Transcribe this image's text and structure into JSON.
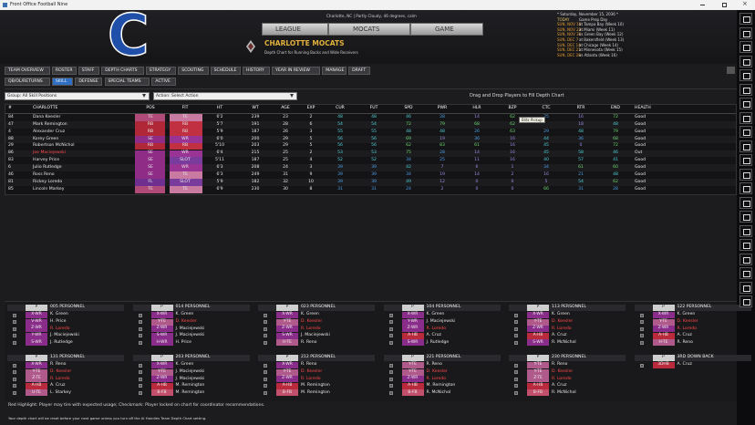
{
  "window": {
    "title": "Front Office Football Nine"
  },
  "header": {
    "location": "Charlotte, NC | Partly Cloudy, 46 degrees, calm",
    "logo": "C",
    "nav": [
      "LEAGUE",
      "MOCATS",
      "GAME"
    ],
    "team": "CHARLOTTE MOCATS",
    "subtitle": "Depth Chart for Running Backs and Wide Receivers"
  },
  "schedule": {
    "date": "* Saturday, November 15, 2036 *",
    "rows": [
      [
        "TODAY",
        "Game Prep Day"
      ],
      [
        "SUN, NOV 16",
        "at Tampa Bay (Week 10)"
      ],
      [
        "SUN, NOV 23",
        "at Miami (Week 11)"
      ],
      [
        "SUN, NOV 30",
        "vs Green Bay (Week 12)"
      ],
      [
        "SUN, DEC 7",
        "at Bakersfield (Week 13)"
      ],
      [
        "SUN, DEC 14",
        "at Chicago (Week 14)"
      ],
      [
        "SUN, DEC 21",
        "at Minnesota (Week 15)"
      ],
      [
        "SUN, DEC 28",
        "vs Atlanta (Week 16)"
      ]
    ]
  },
  "tabs": [
    "TEAM OVERVIEW",
    "ROSTER",
    "STAFF",
    "DEPTH CHARTS",
    "STRATEGY",
    "SCOUTING",
    "SCHEDULE",
    "HISTORY",
    "YEAR IN REVIEW",
    "MANAGE",
    "DRAFT"
  ],
  "subtabs": [
    "QB/OL/RETURNS",
    "SKILL",
    "DEFENSE",
    "SPECIAL TEAMS",
    "ACTIVE"
  ],
  "active_subtab": 1,
  "controls": {
    "group": "Group: All Skill Positions",
    "action": "Action: Select Action",
    "hint": "Drag and Drop Players to Fill Depth Chart"
  },
  "table": {
    "columns": [
      "#",
      "CHARLOTTE",
      "POS",
      "FIT",
      "HT",
      "WT",
      "AGE",
      "EXP",
      "CUR",
      "FUT",
      "SPD",
      "PWR",
      "HLR",
      "BZP",
      "CTC",
      "RTR",
      "END",
      "HEALTH"
    ],
    "rows": [
      [
        84,
        "Dana Keesler",
        "TE",
        "TE",
        "6'2",
        239,
        23,
        2,
        48,
        48,
        46,
        28,
        14,
        62,
        25,
        16,
        72,
        "Good"
      ],
      [
        47,
        "Mark Remington",
        "RB",
        "RB",
        "5'7",
        191,
        28,
        6,
        54,
        54,
        72,
        79,
        68,
        62,
        null,
        18,
        48,
        "Good"
      ],
      [
        4,
        "Alexander Cruz",
        "RB",
        "RB",
        "5'9",
        187,
        26,
        3,
        55,
        55,
        48,
        48,
        26,
        63,
        29,
        48,
        79,
        "Good"
      ],
      [
        88,
        "Korey Green",
        "SE",
        "WR",
        "6'0",
        200,
        29,
        5,
        56,
        56,
        69,
        19,
        36,
        16,
        44,
        36,
        68,
        "Good"
      ],
      [
        29,
        "Robertson McNichol",
        "RB",
        "RB",
        "5'10",
        203,
        29,
        5,
        56,
        56,
        62,
        83,
        61,
        16,
        45,
        0,
        72,
        "Good"
      ],
      [
        86,
        "Joe Maciejewski",
        "SE",
        "WR",
        "6'4",
        215,
        25,
        2,
        53,
        53,
        75,
        28,
        14,
        16,
        45,
        58,
        46,
        "Out"
      ],
      [
        83,
        "Harvey Price",
        "SE",
        "SLOT",
        "5'11",
        187,
        25,
        4,
        52,
        52,
        34,
        25,
        11,
        16,
        40,
        57,
        41,
        "Good"
      ],
      [
        6,
        "Julio Rutledge",
        "SE",
        "WR",
        "6'3",
        208,
        24,
        3,
        39,
        39,
        42,
        7,
        6,
        1,
        34,
        61,
        60,
        "Good"
      ],
      [
        46,
        "Ross Reno",
        "SE",
        "TE",
        "6'3",
        249,
        31,
        9,
        39,
        39,
        34,
        19,
        14,
        2,
        16,
        21,
        48,
        "Good"
      ],
      [
        81,
        "Rickey Loredo",
        "FL",
        "SLOT",
        "5'9",
        182,
        32,
        10,
        39,
        39,
        49,
        12,
        0,
        0,
        5,
        54,
        62,
        "Good"
      ],
      [
        85,
        "Lincoln Markey",
        "TE",
        "TE",
        "6'9",
        230,
        30,
        8,
        31,
        31,
        24,
        2,
        0,
        0,
        66,
        31,
        28,
        "Good"
      ]
    ],
    "red_rows": [
      5
    ],
    "tooltip": "Blitz Pickup"
  },
  "personnel": [
    {
      "p": "P",
      "title": "005 PERSONNEL",
      "slots": [
        {
          "pos": "X-WR",
          "player": "K. Green"
        },
        {
          "pos": "V-WR",
          "player": "H. Price"
        },
        {
          "pos": "Z-WR",
          "player": "R. Loredo",
          "red": true
        },
        {
          "pos": "Y-WR",
          "player": "J. Maciejewski"
        },
        {
          "pos": "S-WR",
          "player": "J. Rutledge"
        }
      ]
    },
    {
      "p": "P",
      "title": "014 PERSONNEL",
      "slots": [
        {
          "pos": "X-WR",
          "player": "K. Green"
        },
        {
          "pos": "Y-TE",
          "player": "D. Keesler",
          "red": true
        },
        {
          "pos": "Z-WR",
          "player": "J. Maciejewski"
        },
        {
          "pos": "S-WR",
          "player": "J. Maciejewski"
        },
        {
          "pos": "H-WR",
          "player": "H. Price"
        }
      ]
    },
    {
      "p": "P",
      "title": "023 PERSONNEL",
      "slots": [
        {
          "pos": "X-WR",
          "player": "K. Green"
        },
        {
          "pos": "Y-TE",
          "player": "D. Keesler",
          "red": true
        },
        {
          "pos": "Z-WR",
          "player": "R. Loredo",
          "red": true
        },
        {
          "pos": "S-WR",
          "player": "J. Maciejewski"
        },
        {
          "pos": "H-TE",
          "player": "R. Reno"
        }
      ]
    },
    {
      "p": "P",
      "title": "104 PERSONNEL",
      "slots": [
        {
          "pos": "X-WR",
          "player": "K. Green"
        },
        {
          "pos": "Y-WR",
          "player": "J. Maciejewski"
        },
        {
          "pos": "Z-WR",
          "player": "R. Loredo",
          "red": true
        },
        {
          "pos": "A-HB",
          "player": "A. Cruz"
        },
        {
          "pos": "S-WR",
          "player": "J. Rutledge"
        }
      ]
    },
    {
      "p": "P",
      "title": "113 PERSONNEL",
      "slots": [
        {
          "pos": "X-WR",
          "player": "K. Green"
        },
        {
          "pos": "Y-TE",
          "player": "D. Keesler",
          "red": true
        },
        {
          "pos": "Z-WR",
          "player": "R. Loredo",
          "red": true
        },
        {
          "pos": "A-HB",
          "player": "A. Cruz"
        },
        {
          "pos": "S-WR",
          "player": "R. McNichol"
        }
      ]
    },
    {
      "p": "P",
      "title": "122 PERSONNEL",
      "slots": [
        {
          "pos": "X-WR",
          "player": "K. Green"
        },
        {
          "pos": "Y-TE",
          "player": "D. Keesler",
          "red": true
        },
        {
          "pos": "Z-WR",
          "player": "R. Loredo",
          "red": true
        },
        {
          "pos": "A-HB",
          "player": "A. Cruz"
        },
        {
          "pos": "H-TE",
          "player": "R. Reno"
        }
      ]
    },
    {
      "p": "P",
      "title": "131 PERSONNEL",
      "slots": [
        {
          "pos": "X-WR",
          "player": "R. Reno"
        },
        {
          "pos": "Y-TE",
          "player": "D. Keesler",
          "red": true
        },
        {
          "pos": "Z-TE",
          "player": "R. Loredo",
          "red": true
        },
        {
          "pos": "A-HB",
          "player": "A. Cruz"
        },
        {
          "pos": "U-TE",
          "player": "L. Starkey"
        }
      ]
    },
    {
      "p": "P",
      "title": "203 PERSONNEL",
      "slots": [
        {
          "pos": "X-WR",
          "player": "K. Green"
        },
        {
          "pos": "Y-TE",
          "player": "J. Maciejewski"
        },
        {
          "pos": "Z-WR",
          "player": "J. Maciejewski"
        },
        {
          "pos": "A-HB",
          "player": "M. Remington"
        },
        {
          "pos": "B-FB",
          "player": "M. Remington"
        }
      ]
    },
    {
      "p": "P",
      "title": "212 PERSONNEL",
      "slots": [
        {
          "pos": "X-WR",
          "player": "R. Reno"
        },
        {
          "pos": "Y-TE",
          "player": "D. Keesler",
          "red": true
        },
        {
          "pos": "Z-WR",
          "player": "R. Loredo",
          "red": true
        },
        {
          "pos": "A-HB",
          "player": "M. Remington"
        },
        {
          "pos": "B-FB",
          "player": "M. Remington"
        }
      ]
    },
    {
      "p": "P",
      "title": "221 PERSONNEL",
      "slots": [
        {
          "pos": "Y-TE",
          "player": "R. Reno"
        },
        {
          "pos": "Y-TE",
          "player": "D. Keesler",
          "red": true
        },
        {
          "pos": "Z-WR",
          "player": "R. Loredo",
          "red": true
        },
        {
          "pos": "A-HB",
          "player": "M. Remington"
        },
        {
          "pos": "B-FB",
          "player": "R. McNichol"
        }
      ]
    },
    {
      "p": "P",
      "title": "230 PERSONNEL",
      "slots": [
        {
          "pos": "Y-TE",
          "player": "R. Reno"
        },
        {
          "pos": "Y-TE",
          "player": "D. Keesler",
          "red": true
        },
        {
          "pos": "Z-TE",
          "player": "R. Loredo",
          "red": true
        },
        {
          "pos": "A-HB",
          "player": "A. Cruz"
        },
        {
          "pos": "B-FB",
          "player": "R. McNichol"
        }
      ]
    },
    {
      "p": "P",
      "title": "3RD DOWN BACK",
      "slots": [
        {
          "pos": "3DHB",
          "player": "A. Cruz"
        }
      ]
    }
  ],
  "footer": [
    "Red Highlight: Player may tire with expected usage; Checkmark: Player locked on chart for coordinator recommendations.",
    "Your depth chart will be reset before your next game unless you turn off the AI Handles Team Depth Chart setting."
  ]
}
